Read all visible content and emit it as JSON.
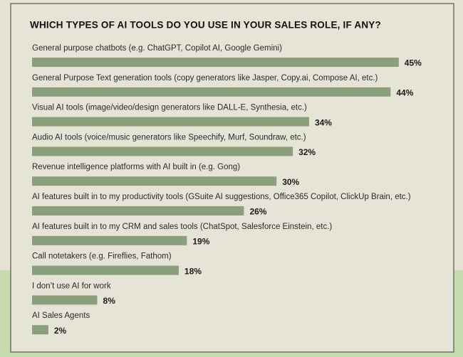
{
  "chart_data": {
    "type": "bar",
    "title": "WHICH TYPES OF AI TOOLS DO YOU USE IN YOUR SALES ROLE, IF ANY?",
    "categories": [
      "General purpose chatbots (e.g. ChatGPT, Copilot AI, Google Gemini)",
      "General Purpose Text generation tools (copy generators like Jasper, Copy.ai, Compose AI, etc.)",
      "Visual AI tools (image/video/design generators like DALL-E, Synthesia, etc.)",
      "Audio AI tools (voice/music generators like Speechify, Murf, Soundraw, etc.)",
      "Revenue intelligence platforms with AI built in (e.g. Gong)",
      "AI features built in to my productivity tools (GSuite AI suggestions, Office365 Copilot, ClickUp Brain, etc.)",
      "AI features built in to my CRM and sales tools (ChatSpot, Salesforce Einstein, etc.)",
      "Call notetakers (e.g. Fireflies, Fathom)",
      "I don’t use AI for work",
      "AI Sales Agents"
    ],
    "values": [
      45,
      44,
      34,
      32,
      30,
      26,
      19,
      18,
      8,
      2
    ],
    "value_labels": [
      "45%",
      "44%",
      "34%",
      "32%",
      "30%",
      "26%",
      "19%",
      "18%",
      "8%",
      "2%"
    ],
    "color": "#8a9f7b"
  }
}
